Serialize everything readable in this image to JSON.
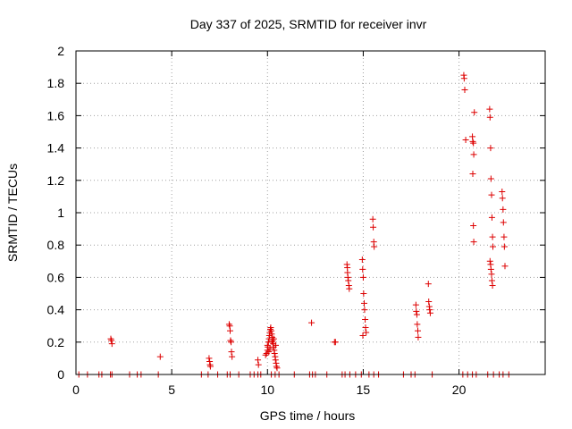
{
  "chart_data": {
    "type": "scatter",
    "title": "Day 337 of 2025, SRMTID for receiver invr",
    "xlabel": "GPS time / hours",
    "ylabel": "SRMTID / TECUs",
    "xlim": [
      0,
      24.5
    ],
    "ylim": [
      0,
      2
    ],
    "grid": true,
    "marker": "+",
    "marker_color": "#dd0000",
    "x_ticks": [
      0,
      5,
      10,
      15,
      20
    ],
    "y_ticks": [
      0,
      0.2,
      0.4,
      0.6,
      0.8,
      1,
      1.2,
      1.4,
      1.6,
      1.8,
      2
    ],
    "x_tick_labels": [
      "0",
      "5",
      "10",
      "15",
      "20"
    ],
    "y_tick_labels": [
      "0",
      "0.2",
      "0.4",
      "0.6",
      "0.8",
      "1",
      "1.2",
      "1.4",
      "1.6",
      "1.8",
      "2"
    ],
    "series": [
      {
        "name": "SRMTID",
        "points": [
          [
            0.15,
            0
          ],
          [
            0.6,
            0
          ],
          [
            1.2,
            0
          ],
          [
            1.35,
            0
          ],
          [
            1.8,
            0
          ],
          [
            1.88,
            0
          ],
          [
            2.8,
            0
          ],
          [
            3.2,
            0
          ],
          [
            3.4,
            0
          ],
          [
            4.3,
            0
          ],
          [
            6.55,
            0
          ],
          [
            6.9,
            0
          ],
          [
            7.4,
            0
          ],
          [
            7.9,
            0
          ],
          [
            8.05,
            0
          ],
          [
            8.5,
            0
          ],
          [
            9.1,
            0
          ],
          [
            9.3,
            0
          ],
          [
            9.5,
            0
          ],
          [
            9.65,
            0
          ],
          [
            10.2,
            0
          ],
          [
            10.4,
            0
          ],
          [
            10.6,
            0
          ],
          [
            11.4,
            0
          ],
          [
            12.2,
            0
          ],
          [
            12.35,
            0
          ],
          [
            12.5,
            0
          ],
          [
            13.1,
            0
          ],
          [
            13.9,
            0
          ],
          [
            14.05,
            0
          ],
          [
            14.3,
            0
          ],
          [
            14.6,
            0
          ],
          [
            14.9,
            0
          ],
          [
            15.3,
            0
          ],
          [
            15.55,
            0
          ],
          [
            15.8,
            0
          ],
          [
            17.1,
            0
          ],
          [
            17.5,
            0
          ],
          [
            17.7,
            0
          ],
          [
            18.6,
            0
          ],
          [
            20.2,
            0
          ],
          [
            20.45,
            0
          ],
          [
            20.7,
            0
          ],
          [
            20.9,
            0
          ],
          [
            21.5,
            0
          ],
          [
            21.8,
            0
          ],
          [
            22.1,
            0
          ],
          [
            22.3,
            0
          ],
          [
            22.6,
            0
          ],
          [
            1.82,
            0.22
          ],
          [
            1.85,
            0.21
          ],
          [
            1.88,
            0.19
          ],
          [
            4.4,
            0.11
          ],
          [
            6.95,
            0.1
          ],
          [
            6.98,
            0.08
          ],
          [
            7.0,
            0.06
          ],
          [
            7.02,
            0.05
          ],
          [
            8.0,
            0.31
          ],
          [
            8.03,
            0.3
          ],
          [
            8.05,
            0.27
          ],
          [
            8.07,
            0.21
          ],
          [
            8.1,
            0.2
          ],
          [
            8.12,
            0.14
          ],
          [
            8.15,
            0.11
          ],
          [
            9.5,
            0.09
          ],
          [
            9.53,
            0.06
          ],
          [
            9.9,
            0.12
          ],
          [
            9.95,
            0.13
          ],
          [
            10.0,
            0.15
          ],
          [
            10.02,
            0.17
          ],
          [
            10.05,
            0.2
          ],
          [
            10.08,
            0.22
          ],
          [
            10.1,
            0.24
          ],
          [
            10.12,
            0.26
          ],
          [
            10.15,
            0.28
          ],
          [
            10.17,
            0.29
          ],
          [
            10.2,
            0.27
          ],
          [
            10.22,
            0.25
          ],
          [
            10.25,
            0.23
          ],
          [
            10.27,
            0.21
          ],
          [
            10.3,
            0.19
          ],
          [
            10.32,
            0.17
          ],
          [
            10.35,
            0.15
          ],
          [
            10.37,
            0.13
          ],
          [
            10.4,
            0.11
          ],
          [
            10.42,
            0.09
          ],
          [
            10.45,
            0.07
          ],
          [
            10.47,
            0.05
          ],
          [
            10.5,
            0.04
          ],
          [
            10.0,
            0.18
          ],
          [
            10.07,
            0.14
          ],
          [
            10.13,
            0.16
          ],
          [
            10.23,
            0.2
          ],
          [
            10.33,
            0.22
          ],
          [
            10.43,
            0.18
          ],
          [
            12.3,
            0.32
          ],
          [
            13.5,
            0.2
          ],
          [
            13.55,
            0.2
          ],
          [
            14.15,
            0.68
          ],
          [
            14.17,
            0.66
          ],
          [
            14.18,
            0.63
          ],
          [
            14.2,
            0.6
          ],
          [
            14.22,
            0.58
          ],
          [
            14.25,
            0.55
          ],
          [
            14.27,
            0.53
          ],
          [
            14.95,
            0.71
          ],
          [
            14.97,
            0.65
          ],
          [
            15.0,
            0.6
          ],
          [
            15.02,
            0.5
          ],
          [
            15.05,
            0.44
          ],
          [
            15.07,
            0.4
          ],
          [
            15.1,
            0.34
          ],
          [
            15.12,
            0.29
          ],
          [
            15.15,
            0.26
          ],
          [
            14.98,
            0.24
          ],
          [
            15.5,
            0.96
          ],
          [
            15.52,
            0.91
          ],
          [
            15.55,
            0.82
          ],
          [
            15.57,
            0.79
          ],
          [
            17.75,
            0.43
          ],
          [
            17.77,
            0.39
          ],
          [
            17.8,
            0.37
          ],
          [
            17.82,
            0.31
          ],
          [
            17.85,
            0.27
          ],
          [
            17.87,
            0.23
          ],
          [
            18.4,
            0.56
          ],
          [
            18.42,
            0.45
          ],
          [
            18.45,
            0.42
          ],
          [
            18.47,
            0.4
          ],
          [
            18.5,
            0.38
          ],
          [
            20.25,
            1.85
          ],
          [
            20.27,
            1.83
          ],
          [
            20.3,
            1.76
          ],
          [
            20.35,
            1.45
          ],
          [
            20.7,
            1.47
          ],
          [
            20.72,
            1.44
          ],
          [
            20.75,
            1.43
          ],
          [
            20.77,
            1.36
          ],
          [
            20.8,
            1.62
          ],
          [
            20.72,
            1.24
          ],
          [
            20.75,
            0.92
          ],
          [
            20.77,
            0.82
          ],
          [
            21.6,
            1.64
          ],
          [
            21.62,
            1.59
          ],
          [
            21.65,
            1.4
          ],
          [
            21.67,
            1.21
          ],
          [
            21.7,
            1.11
          ],
          [
            21.72,
            0.97
          ],
          [
            21.75,
            0.85
          ],
          [
            21.77,
            0.79
          ],
          [
            21.62,
            0.7
          ],
          [
            21.65,
            0.68
          ],
          [
            21.67,
            0.65
          ],
          [
            21.7,
            0.62
          ],
          [
            21.72,
            0.58
          ],
          [
            21.75,
            0.55
          ],
          [
            22.25,
            1.13
          ],
          [
            22.27,
            1.09
          ],
          [
            22.3,
            1.02
          ],
          [
            22.32,
            0.94
          ],
          [
            22.35,
            0.85
          ],
          [
            22.37,
            0.79
          ],
          [
            22.4,
            0.67
          ]
        ]
      }
    ]
  }
}
